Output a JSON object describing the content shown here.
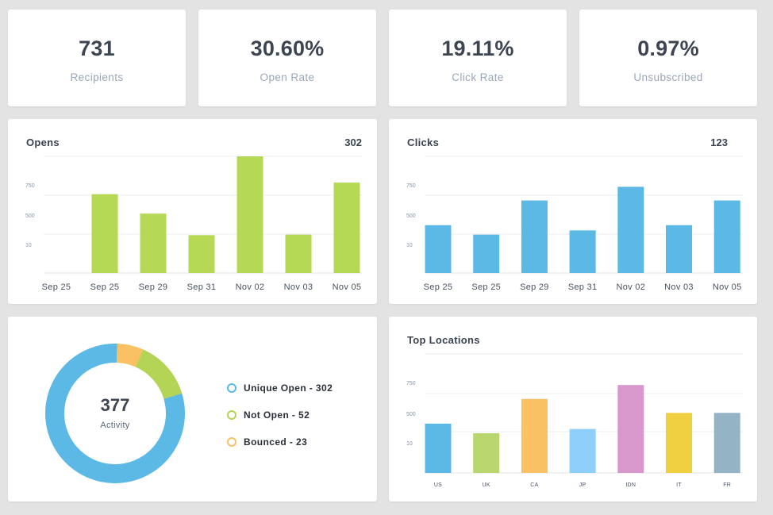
{
  "stats": [
    {
      "value": "731",
      "label": "Recipients"
    },
    {
      "value": "30.60%",
      "label": "Open Rate"
    },
    {
      "value": "19.11%",
      "label": "Click Rate"
    },
    {
      "value": "0.97%",
      "label": "Unsubscribed"
    }
  ],
  "opens": {
    "title": "Opens",
    "total": "302"
  },
  "clicks": {
    "title": "Clicks",
    "total": "123"
  },
  "activity": {
    "value": "377",
    "label": "Activity",
    "legend": [
      {
        "label": "Unique Open - 302",
        "color": "#5cb9e6"
      },
      {
        "label": "Not Open - 52",
        "color": "#b4d455"
      },
      {
        "label": "Bounced - 23",
        "color": "#f9c064"
      }
    ]
  },
  "locations": {
    "title": "Top Locations"
  },
  "chart_data": [
    {
      "type": "bar",
      "title": "Opens",
      "y_tick_labels": [
        "750",
        "500",
        "10"
      ],
      "categories": [
        "Sep 25",
        "Sep 25",
        "Sep 29",
        "Sep 31",
        "Nov 02",
        "Nov 03",
        "Nov 05"
      ],
      "values": [
        0,
        750,
        565,
        360,
        1110,
        365,
        860
      ],
      "ylim": [
        0,
        1110
      ],
      "color": "#b5d955",
      "grid": true
    },
    {
      "type": "bar",
      "title": "Clicks",
      "y_tick_labels": [
        "750",
        "500",
        "10"
      ],
      "categories": [
        "Sep 25",
        "Sep 25",
        "Sep 29",
        "Sep 31",
        "Nov 02",
        "Nov 03",
        "Nov 05"
      ],
      "values": [
        455,
        365,
        690,
        405,
        820,
        455,
        690
      ],
      "ylim": [
        0,
        1110
      ],
      "color": "#5cb9e6",
      "grid": true
    },
    {
      "type": "pie",
      "title": "",
      "categories": [
        "Unique Open",
        "Not Open",
        "Bounced"
      ],
      "values": [
        302,
        52,
        23
      ],
      "colors": [
        "#5cb9e6",
        "#b4d455",
        "#f9c064"
      ]
    },
    {
      "type": "bar",
      "title": "Top Locations",
      "y_tick_labels": [
        "750",
        "500",
        "10"
      ],
      "categories": [
        "US",
        "UK",
        "CA",
        "JP",
        "IDN",
        "IT",
        "FR"
      ],
      "values": [
        460,
        370,
        690,
        410,
        820,
        560,
        560
      ],
      "ylim": [
        0,
        1110
      ],
      "colors": [
        "#5cb9e6",
        "#b9d66f",
        "#f9c064",
        "#8ed0fb",
        "#d898cb",
        "#f0d040",
        "#94b4c6"
      ],
      "grid": true
    }
  ]
}
